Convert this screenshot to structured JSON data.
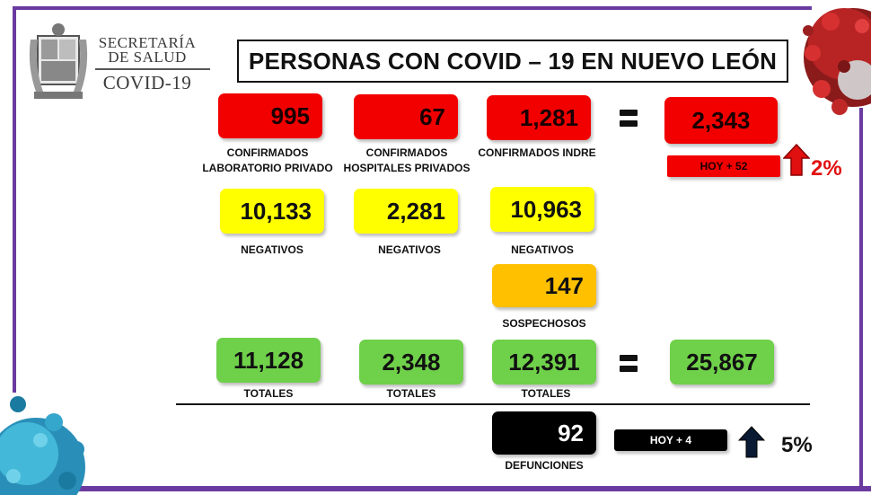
{
  "header": {
    "logo_line1": "SECRETARÍA",
    "logo_line2": "DE SALUD",
    "logo_line3": "COVID-19",
    "title": "PERSONAS CON COVID – 19 EN NUEVO LEÓN"
  },
  "confirmados": {
    "laboratorio_privado": {
      "value": "995",
      "label_1": "CONFIRMADOS",
      "label_2": "LABORATORIO PRIVADO"
    },
    "hospitales_privados": {
      "value": "67",
      "label_1": "CONFIRMADOS",
      "label_2": "HOSPITALES PRIVADOS"
    },
    "indre": {
      "value": "1,281",
      "label_1": "CONFIRMADOS INDRE"
    },
    "total": "2,343",
    "hoy": "HOY + 52",
    "percent": "2%"
  },
  "negativos": {
    "col1": {
      "value": "10,133",
      "label": "NEGATIVOS"
    },
    "col2": {
      "value": "2,281",
      "label": "NEGATIVOS"
    },
    "col3": {
      "value": "10,963",
      "label": "NEGATIVOS"
    }
  },
  "sospechosos": {
    "value": "147",
    "label": "SOSPECHOSOS"
  },
  "totales": {
    "col1": {
      "value": "11,128",
      "label": "TOTALES"
    },
    "col2": {
      "value": "2,348",
      "label": "TOTALES"
    },
    "col3": {
      "value": "12,391",
      "label": "TOTALES"
    },
    "grand_total": "25,867"
  },
  "defunciones": {
    "value": "92",
    "label": "DEFUNCIONES",
    "hoy": "HOY + 4",
    "percent": "5%"
  },
  "colors": {
    "confirmed": "#f20000",
    "negative": "#ffff00",
    "suspected": "#ffc000",
    "total": "#6fd04a",
    "deaths": "#000000",
    "frame": "#6a3aa0"
  },
  "icons": [
    "coat-of-arms-logo",
    "virus-image",
    "up-arrow-icon"
  ]
}
